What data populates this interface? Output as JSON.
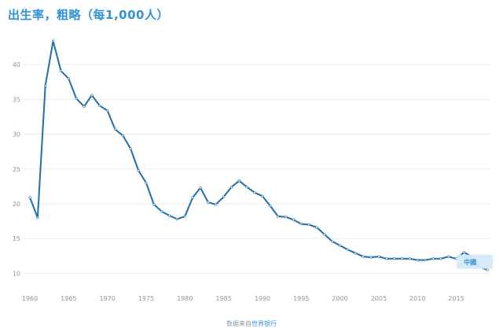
{
  "title": "出生率，粗略（每1,000人）",
  "source": {
    "prefix": "数据来自",
    "link_text": "世界银行"
  },
  "colors": {
    "title": "#2f93d5",
    "line": "#1f6fa8",
    "grid": "#e6e9ed",
    "tick": "#8a97a3",
    "tag_bg": "#d5e9f7",
    "tag_text": "#2f93d5"
  },
  "chart_data": {
    "type": "line",
    "title": "出生率，粗略（每1,000人）",
    "xlabel": "",
    "ylabel": "",
    "xlim": [
      1960,
      2019
    ],
    "ylim": [
      8,
      45
    ],
    "x_ticks": [
      1960,
      1965,
      1970,
      1975,
      1980,
      1985,
      1990,
      1995,
      2000,
      2005,
      2010,
      2015
    ],
    "y_ticks": [
      10,
      15,
      20,
      25,
      30,
      35,
      40
    ],
    "grid": "horizontal",
    "series": [
      {
        "name": "中國",
        "x": [
          1960,
          1961,
          1962,
          1963,
          1964,
          1965,
          1966,
          1967,
          1968,
          1969,
          1970,
          1971,
          1972,
          1973,
          1974,
          1975,
          1976,
          1977,
          1978,
          1979,
          1980,
          1981,
          1982,
          1983,
          1984,
          1985,
          1986,
          1987,
          1988,
          1989,
          1990,
          1991,
          1992,
          1993,
          1994,
          1995,
          1996,
          1997,
          1998,
          1999,
          2000,
          2001,
          2002,
          2003,
          2004,
          2005,
          2006,
          2007,
          2008,
          2009,
          2010,
          2011,
          2012,
          2013,
          2014,
          2015,
          2016,
          2017,
          2018,
          2019
        ],
        "values": [
          20.9,
          18.0,
          37.0,
          43.4,
          39.1,
          38.0,
          35.1,
          34.0,
          35.6,
          34.1,
          33.4,
          30.7,
          29.8,
          27.9,
          24.8,
          23.0,
          19.9,
          18.9,
          18.3,
          17.8,
          18.2,
          20.9,
          22.3,
          20.2,
          19.9,
          21.0,
          22.4,
          23.3,
          22.4,
          21.6,
          21.1,
          19.7,
          18.2,
          18.1,
          17.7,
          17.1,
          17.0,
          16.6,
          15.6,
          14.6,
          14.0,
          13.4,
          12.9,
          12.4,
          12.3,
          12.4,
          12.1,
          12.1,
          12.1,
          12.1,
          11.9,
          11.9,
          12.1,
          12.1,
          12.4,
          12.1,
          13.0,
          12.4,
          10.9,
          10.5
        ]
      }
    ],
    "annotations": [
      {
        "text": "中國",
        "x": 2018,
        "y": 12.0
      }
    ]
  }
}
